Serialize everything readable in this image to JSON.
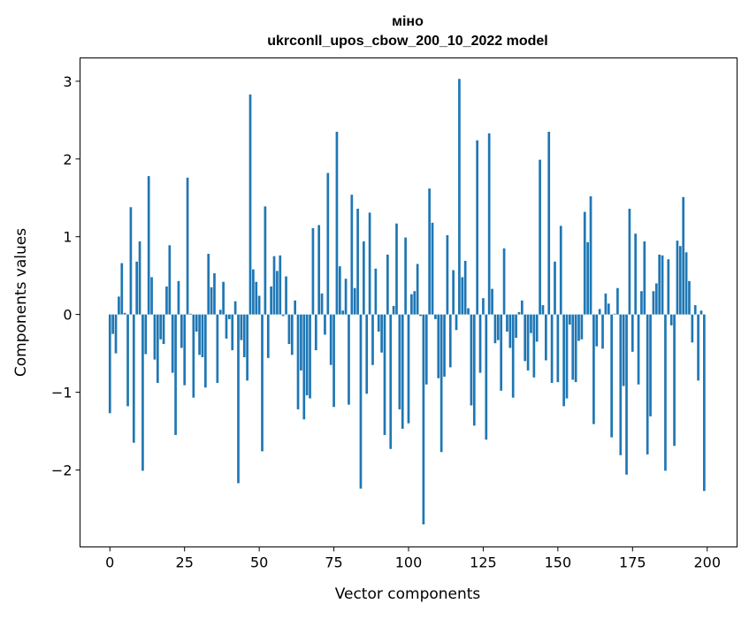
{
  "chart_data": {
    "type": "bar",
    "title_line1": "міно",
    "title_line2": "ukrconll_upos_cbow_200_10_2022 model",
    "xlabel": "Vector components",
    "ylabel": "Components values",
    "xlim": [
      -10,
      210
    ],
    "ylim": [
      -2.99,
      3.3
    ],
    "xticks": [
      0,
      25,
      50,
      75,
      100,
      125,
      150,
      175,
      200
    ],
    "xtick_labels": [
      "0",
      "25",
      "50",
      "75",
      "100",
      "125",
      "150",
      "175",
      "200"
    ],
    "yticks": [
      -2,
      -1,
      0,
      1,
      2,
      3
    ],
    "ytick_labels": [
      "−2",
      "−1",
      "0",
      "1",
      "2",
      "3"
    ],
    "color": "#1f77b4",
    "grid": false,
    "values": [
      -1.27,
      -0.25,
      -0.5,
      0.23,
      0.66,
      0.02,
      -1.18,
      1.38,
      -1.65,
      0.68,
      0.94,
      -2.01,
      -0.51,
      1.78,
      0.48,
      -0.58,
      -0.88,
      -0.32,
      -0.38,
      0.36,
      0.89,
      -0.75,
      -1.55,
      0.43,
      -0.43,
      -0.91,
      1.76,
      0.01,
      -1.07,
      -0.22,
      -0.52,
      -0.55,
      -0.94,
      0.78,
      0.35,
      0.53,
      -0.88,
      0.06,
      0.42,
      -0.31,
      -0.06,
      -0.46,
      0.17,
      -2.17,
      -0.33,
      -0.55,
      -0.85,
      2.83,
      0.58,
      0.42,
      0.24,
      -1.76,
      1.39,
      -0.56,
      0.36,
      0.75,
      0.56,
      0.76,
      -0.02,
      0.49,
      -0.38,
      -0.52,
      0.18,
      -1.22,
      -0.72,
      -1.35,
      -1.04,
      -1.08,
      1.11,
      -0.46,
      1.15,
      0.27,
      -0.26,
      1.82,
      -0.65,
      -1.19,
      2.35,
      0.62,
      0.05,
      0.46,
      -1.16,
      1.54,
      0.34,
      1.36,
      -2.24,
      0.94,
      -1.02,
      1.31,
      -0.65,
      0.59,
      -0.22,
      -0.49,
      -1.55,
      0.77,
      -1.73,
      0.11,
      1.17,
      -1.22,
      -1.47,
      0.99,
      -1.4,
      0.26,
      0.3,
      0.65,
      -0.02,
      -2.7,
      -0.9,
      1.62,
      1.18,
      -0.06,
      -0.82,
      -1.77,
      -0.8,
      1.02,
      -0.68,
      0.57,
      -0.2,
      3.03,
      0.48,
      0.69,
      0.08,
      -1.17,
      -1.43,
      2.24,
      -0.75,
      0.21,
      -1.61,
      2.33,
      0.33,
      -0.37,
      -0.33,
      -0.98,
      0.85,
      -0.22,
      -0.43,
      -1.07,
      -0.3,
      0.03,
      0.18,
      -0.6,
      -0.72,
      -0.24,
      -0.81,
      -0.35,
      1.99,
      0.12,
      -0.59,
      2.35,
      -0.88,
      0.68,
      -0.87,
      1.14,
      -1.18,
      -1.08,
      -0.13,
      -0.84,
      -0.87,
      -0.34,
      -0.32,
      1.32,
      0.93,
      1.52,
      -1.41,
      -0.41,
      0.07,
      -0.44,
      0.27,
      0.14,
      -1.58,
      0.01,
      0.34,
      -1.81,
      -0.92,
      -2.06,
      1.36,
      -0.48,
      1.04,
      -0.9,
      0.3,
      0.94,
      -1.8,
      -1.31,
      0.3,
      0.4,
      0.77,
      0.76,
      -2.01,
      0.71,
      -0.14,
      -1.69,
      0.95,
      0.88,
      1.51,
      0.8,
      0.43,
      -0.36,
      0.12,
      -0.85,
      0.05,
      -2.27
    ]
  }
}
